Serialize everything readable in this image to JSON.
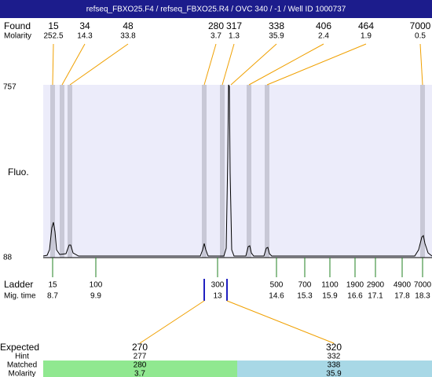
{
  "header": {
    "title": "refseq_FBXO25.F4 / refseq_FBXO25.R4 / OVC 340 / -1 / Well ID 1000737"
  },
  "found": {
    "label": "Found",
    "sublabel": "Molarity",
    "peaks": [
      {
        "size": "15",
        "molarity": "252.5"
      },
      {
        "size": "34",
        "molarity": "14.3"
      },
      {
        "size": "48",
        "molarity": "33.8"
      },
      {
        "size": "280",
        "molarity": "3.7"
      },
      {
        "size": "317",
        "molarity": "1.3"
      },
      {
        "size": "338",
        "molarity": "35.9"
      },
      {
        "size": "406",
        "molarity": "2.4"
      },
      {
        "size": "464",
        "molarity": "1.9"
      },
      {
        "size": "7000",
        "molarity": "0.5"
      }
    ]
  },
  "plot": {
    "y_max_label": "757",
    "y_min_label": "88",
    "y_label": "Fluo."
  },
  "ladder": {
    "label": "Ladder",
    "sublabel": "Mig. time",
    "markers": [
      {
        "size": "15",
        "time": "8.7"
      },
      {
        "size": "100",
        "time": "9.9"
      },
      {
        "size": "300",
        "time": "13"
      },
      {
        "size": "500",
        "time": "14.6"
      },
      {
        "size": "700",
        "time": "15.3"
      },
      {
        "size": "1100",
        "time": "15.9"
      },
      {
        "size": "1900",
        "time": "16.6"
      },
      {
        "size": "2900",
        "time": "17.1"
      },
      {
        "size": "4900",
        "time": "17.8"
      },
      {
        "size": "7000",
        "time": "18.3"
      }
    ]
  },
  "expected": {
    "label": "Expected",
    "hint_label": "Hint",
    "matched_label": "Matched",
    "molarity_label": "Molarity",
    "columns": [
      {
        "expected": "270",
        "hint": "277",
        "matched": "280",
        "molarity": "3.7"
      },
      {
        "expected": "320",
        "hint": "332",
        "matched": "338",
        "molarity": "35.9"
      }
    ]
  }
}
